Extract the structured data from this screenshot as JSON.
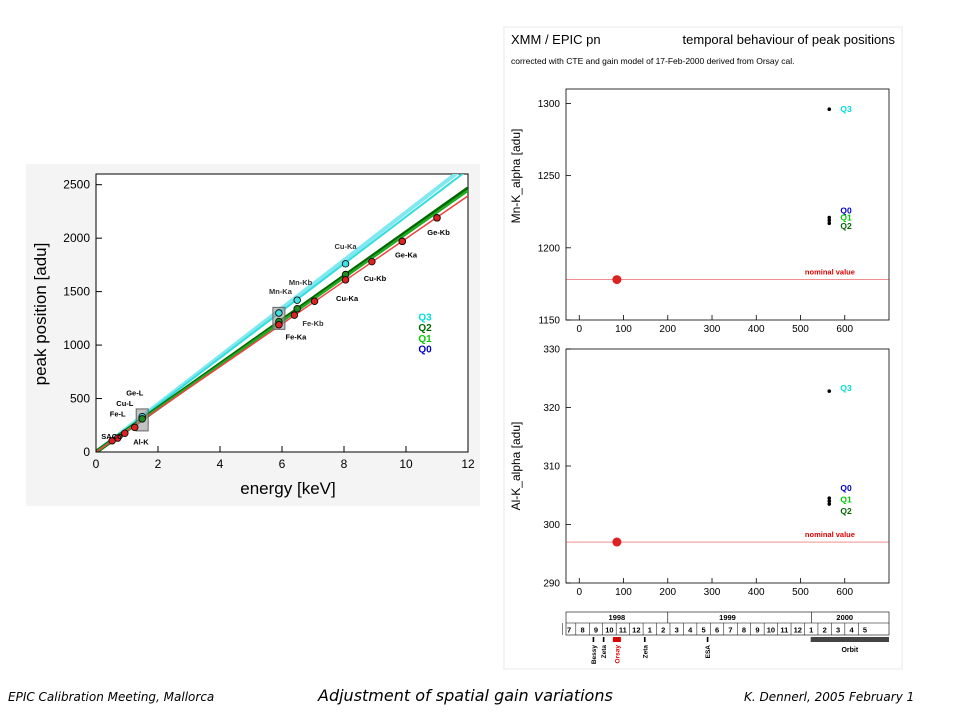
{
  "footer": {
    "left": "EPIC Calibration Meeting, Mallorca",
    "center": "Adjustment of spatial gain variations",
    "right": "K. Dennerl, 2005 February 1"
  },
  "colors": {
    "Q0": "#0000cc",
    "Q1": "#00cc00",
    "Q2": "#006600",
    "Q3": "#00dddd",
    "fit_Q3": "#80e8f0",
    "fit_Q2": "#006600",
    "fit_Q1": "#22aa22",
    "fit_Q0": "#ee4444",
    "line_Q3b": "#33dddd",
    "marker_teal": "#40e0e0",
    "marker_green": "#228b22",
    "marker_red": "#dd2222",
    "nominal": "#dd0000",
    "panel_bg": "#ffffff",
    "plot_bg": "#f4f4f4"
  },
  "chart_data": [
    {
      "type": "scatter",
      "xlabel": "energy  [keV]",
      "ylabel": "peak position  [adu]",
      "xlim": [
        0,
        12
      ],
      "ylim": [
        0,
        2600
      ],
      "xticks": [
        0,
        2,
        4,
        6,
        8,
        10,
        12
      ],
      "yticks": [
        0,
        500,
        1000,
        1500,
        2000,
        2500
      ],
      "fit_lines": [
        {
          "id": "Q3a",
          "x": [
            0,
            12
          ],
          "y": [
            0,
            2690
          ]
        },
        {
          "id": "Q3b",
          "x": [
            0,
            12
          ],
          "y": [
            0,
            2640
          ]
        },
        {
          "id": "Q2",
          "x": [
            0,
            12
          ],
          "y": [
            0,
            2465
          ]
        },
        {
          "id": "Q1",
          "x": [
            0,
            12
          ],
          "y": [
            0,
            2445
          ]
        },
        {
          "id": "Q0",
          "x": [
            0,
            12
          ],
          "y": [
            0,
            2395
          ]
        }
      ],
      "points_teal": [
        {
          "x": 1.49,
          "y": 330
        },
        {
          "x": 5.9,
          "y": 1300
        },
        {
          "x": 6.49,
          "y": 1420
        },
        {
          "x": 8.05,
          "y": 1760
        }
      ],
      "points_green": [
        {
          "x": 1.49,
          "y": 310
        },
        {
          "x": 5.9,
          "y": 1220
        },
        {
          "x": 6.49,
          "y": 1340
        },
        {
          "x": 8.05,
          "y": 1660
        },
        {
          "x": 9.88,
          "y": 1970
        },
        {
          "x": 11.0,
          "y": 2190
        }
      ],
      "points_red": [
        {
          "x": 0.52,
          "y": 105
        },
        {
          "x": 0.7,
          "y": 130
        },
        {
          "x": 0.93,
          "y": 175
        },
        {
          "x": 1.25,
          "y": 230
        },
        {
          "x": 5.9,
          "y": 1190
        },
        {
          "x": 6.4,
          "y": 1280
        },
        {
          "x": 7.05,
          "y": 1410
        },
        {
          "x": 8.05,
          "y": 1610
        },
        {
          "x": 8.9,
          "y": 1780
        },
        {
          "x": 9.88,
          "y": 1970
        },
        {
          "x": 11.0,
          "y": 2190
        }
      ],
      "labels": [
        {
          "text": "Cu-Ka",
          "x": 8.05,
          "y": 1900,
          "color": "Q2"
        },
        {
          "text": "Mn-Kb",
          "x": 6.6,
          "y": 1560,
          "color": "Q2"
        },
        {
          "text": "Mn-Ka",
          "x": 5.95,
          "y": 1480,
          "color": "Q2"
        },
        {
          "text": "Fe-Kb",
          "x": 7.0,
          "y": 1180,
          "color": "Q2"
        },
        {
          "text": "Fe-Ka",
          "x": 6.45,
          "y": 1050,
          "color": "Q0"
        },
        {
          "text": "Cu-Kb",
          "x": 9.0,
          "y": 1600,
          "color": "Q0"
        },
        {
          "text": "Cu-Ka",
          "x": 8.1,
          "y": 1410,
          "color": "Q0"
        },
        {
          "text": "Ge-Ka",
          "x": 10.0,
          "y": 1820,
          "color": "Q0"
        },
        {
          "text": "Ge-Kb",
          "x": 11.05,
          "y": 2030,
          "color": "Q0"
        },
        {
          "text": "Ge-L",
          "x": 1.25,
          "y": 530,
          "color": "Q0"
        },
        {
          "text": "Cu-L",
          "x": 0.93,
          "y": 430,
          "color": "Q0"
        },
        {
          "text": "Fe-L",
          "x": 0.7,
          "y": 330,
          "color": "Q0"
        },
        {
          "text": "SACO",
          "x": 0.52,
          "y": 120,
          "color": "Q0"
        },
        {
          "text": "Al-K",
          "x": 1.45,
          "y": 70,
          "color": "Q0"
        }
      ],
      "legend": [
        "Q3",
        "Q2",
        "Q1",
        "Q0"
      ],
      "legend_position": "right"
    },
    {
      "type": "scatter",
      "title": "XMM / EPIC pn",
      "title_right": "temporal behaviour of peak positions",
      "subtitle": "corrected with CTE and gain model of 17-Feb-2000 derived from Orsay cal.",
      "ylabel": "Mn-K_alpha  [adu]",
      "xlim": [
        -30,
        700
      ],
      "ylim": [
        1150,
        1310
      ],
      "xticks": [
        0,
        100,
        200,
        300,
        400,
        500,
        600
      ],
      "yticks": [
        1150,
        1200,
        1250,
        1300
      ],
      "nominal_value": 1178,
      "nominal_label": "nominal value",
      "nominal_point": {
        "x": 85,
        "y": 1178
      },
      "points": [
        {
          "x": 565,
          "y": 1296,
          "q": "Q3"
        },
        {
          "x": 565,
          "y": 1221,
          "q": "Q0"
        },
        {
          "x": 565,
          "y": 1219,
          "q": "Q1"
        },
        {
          "x": 565,
          "y": 1217,
          "q": "Q2"
        }
      ],
      "legend": [
        {
          "text": "Q3",
          "y": 1296
        },
        {
          "text": "Q0",
          "y": 1226
        },
        {
          "text": "Q1",
          "y": 1221
        },
        {
          "text": "Q2",
          "y": 1215
        }
      ]
    },
    {
      "type": "scatter",
      "ylabel": "Al-K_alpha  [adu]",
      "xlim": [
        -30,
        700
      ],
      "ylim": [
        290,
        330
      ],
      "xticks": [
        0,
        100,
        200,
        300,
        400,
        500,
        600
      ],
      "yticks": [
        290,
        300,
        310,
        320,
        330
      ],
      "nominal_value": 297,
      "nominal_label": "nominal value",
      "nominal_point": {
        "x": 85,
        "y": 297
      },
      "points": [
        {
          "x": 565,
          "y": 322.8,
          "q": "Q3"
        },
        {
          "x": 565,
          "y": 304.5,
          "q": "Q0"
        },
        {
          "x": 565,
          "y": 304.0,
          "q": "Q1"
        },
        {
          "x": 565,
          "y": 303.5,
          "q": "Q2"
        }
      ],
      "legend": [
        {
          "text": "Q3",
          "y": 323.3
        },
        {
          "text": "Q0",
          "y": 306.2
        },
        {
          "text": "Q1",
          "y": 304.3
        },
        {
          "text": "Q2",
          "y": 302.3
        }
      ]
    }
  ],
  "timeline": {
    "years": [
      {
        "label": "1998",
        "x": 85
      },
      {
        "label": "1999",
        "x": 335
      },
      {
        "label": "2000",
        "x": 600
      }
    ],
    "year_bounds": [
      -30,
      200,
      525,
      700
    ],
    "months": [
      "7",
      "8",
      "9",
      "10",
      "11",
      "12",
      "1",
      "2",
      "3",
      "4",
      "5",
      "6",
      "7",
      "8",
      "9",
      "10",
      "11",
      "12",
      "1",
      "2",
      "3",
      "4",
      "5"
    ],
    "month_start": -23,
    "month_step": 30.4,
    "events": [
      {
        "text": "Bessy",
        "x": 32
      },
      {
        "text": "Zeta",
        "x": 55
      },
      {
        "text": "Orsay",
        "x": 85,
        "color": "#dd0000"
      },
      {
        "text": "Zeta",
        "x": 148
      },
      {
        "text": "ESA",
        "x": 290
      }
    ],
    "orbit_label": "Orbit",
    "orbit_start": 523
  }
}
